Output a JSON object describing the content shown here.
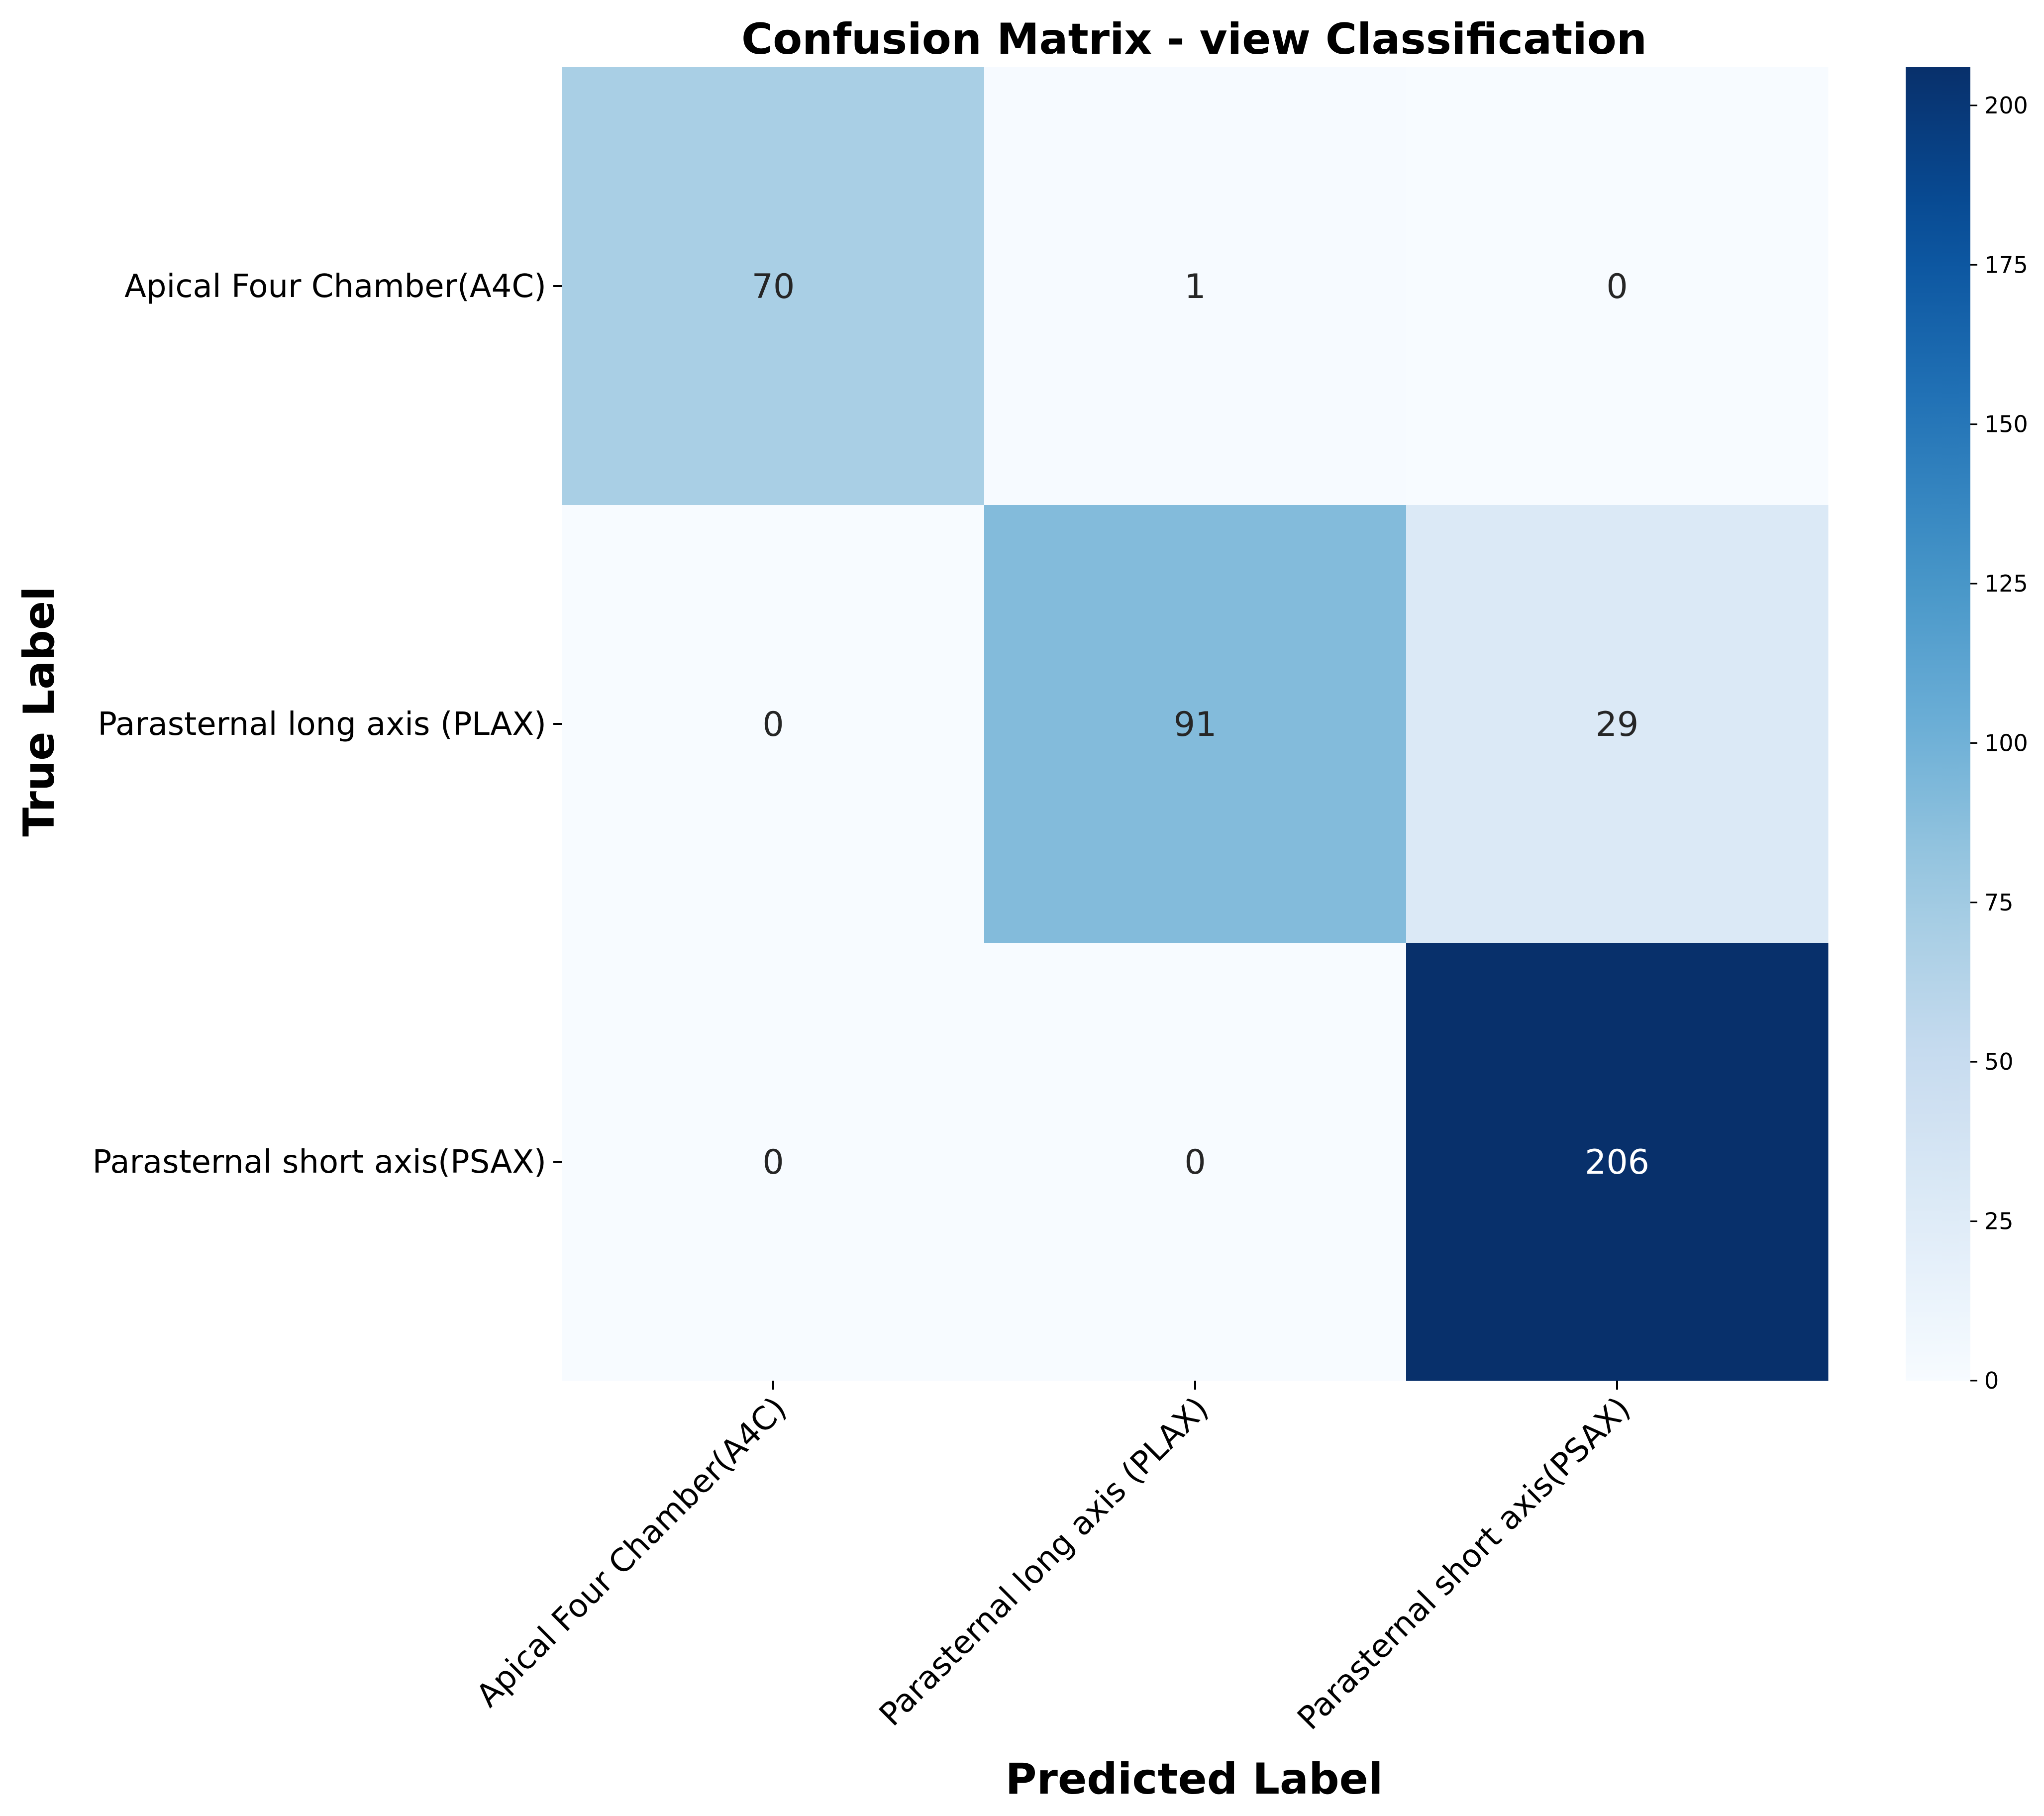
{
  "chart_data": {
    "type": "heatmap",
    "title": "Confusion Matrix - view Classification",
    "xlabel": "Predicted Label",
    "ylabel": "True Label",
    "row_labels": [
      "Apical Four Chamber(A4C)",
      "Parasternal long axis (PLAX)",
      "Parasternal short axis(PSAX)"
    ],
    "col_labels": [
      "Apical Four Chamber(A4C)",
      "Parasternal long axis (PLAX)",
      "Parasternal short axis(PSAX)"
    ],
    "matrix": [
      [
        70,
        1,
        0
      ],
      [
        0,
        91,
        29
      ],
      [
        0,
        0,
        206
      ]
    ],
    "colormap": "Blues",
    "colorbar": {
      "range": [
        0,
        206
      ],
      "ticks": [
        0,
        25,
        50,
        75,
        100,
        125,
        150,
        175,
        200
      ]
    }
  }
}
